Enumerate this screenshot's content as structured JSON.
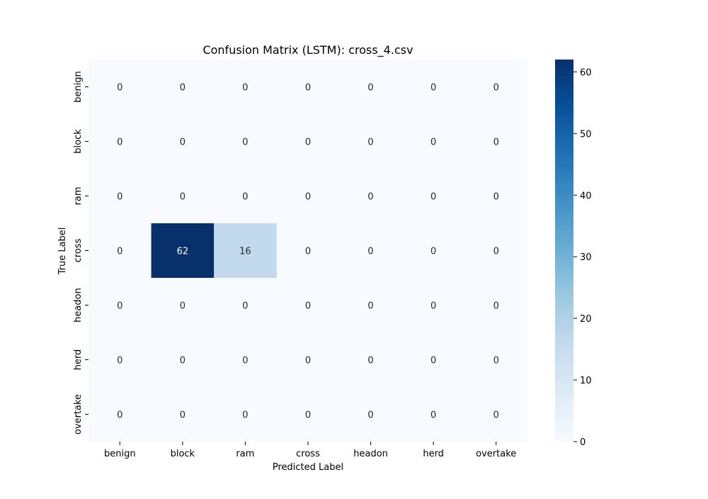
{
  "chart_data": {
    "type": "heatmap",
    "title": "Confusion Matrix (LSTM): cross_4.csv",
    "xlabel": "Predicted Label",
    "ylabel": "True Label",
    "x_categories": [
      "benign",
      "block",
      "ram",
      "cross",
      "headon",
      "herd",
      "overtake"
    ],
    "y_categories": [
      "benign",
      "block",
      "ram",
      "cross",
      "headon",
      "herd",
      "overtake"
    ],
    "values": [
      [
        0,
        0,
        0,
        0,
        0,
        0,
        0
      ],
      [
        0,
        0,
        0,
        0,
        0,
        0,
        0
      ],
      [
        0,
        0,
        0,
        0,
        0,
        0,
        0
      ],
      [
        0,
        62,
        16,
        0,
        0,
        0,
        0
      ],
      [
        0,
        0,
        0,
        0,
        0,
        0,
        0
      ],
      [
        0,
        0,
        0,
        0,
        0,
        0,
        0
      ],
      [
        0,
        0,
        0,
        0,
        0,
        0,
        0
      ]
    ],
    "colorbar": {
      "min": 0,
      "max": 62,
      "ticks": [
        0,
        10,
        20,
        30,
        40,
        50,
        60
      ],
      "colormap": "Blues",
      "low_color": "#f7fbff",
      "high_color": "#08306b"
    },
    "grid": false,
    "legend": "colorbar-right"
  }
}
